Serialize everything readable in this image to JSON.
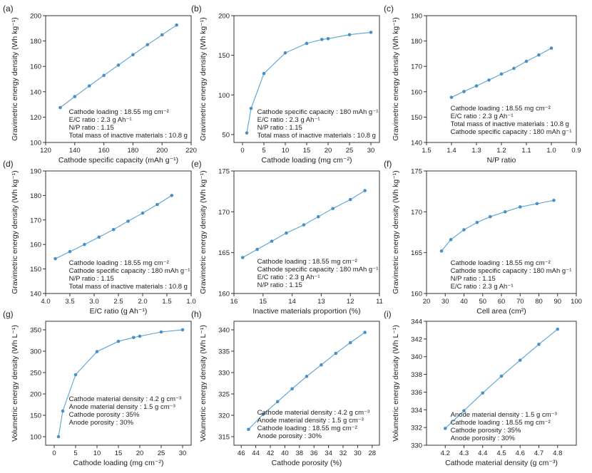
{
  "chart_data": [
    {
      "id": "a",
      "type": "line",
      "panel_label": "(a)",
      "xlabel": "Cathode specific capacity (mAh g⁻¹)",
      "ylabel": "Gravimetric energy density (Wh kg⁻¹)",
      "xlim": [
        120,
        220
      ],
      "ylim": [
        100,
        200
      ],
      "x_reversed": false,
      "xticks": [
        120,
        140,
        160,
        180,
        200,
        220
      ],
      "yticks": [
        100,
        120,
        140,
        160,
        180,
        200
      ],
      "x": [
        130,
        140,
        150,
        160,
        170,
        180,
        190,
        200,
        210
      ],
      "y": [
        127.5,
        136.2,
        144.6,
        152.9,
        161.0,
        169.2,
        177.1,
        184.9,
        192.6
      ],
      "annotation_position": "bottom-right",
      "annotations": [
        "Cathode loading : 18.55 mg cm⁻²",
        "E/C ratio : 2.3 g Ah⁻¹",
        "N/P ratio : 1.15",
        "Total mass of inactive materials : 10.8 g"
      ]
    },
    {
      "id": "b",
      "type": "line",
      "panel_label": "(b)",
      "xlabel": "Cathode loading (mg cm⁻²)",
      "ylabel": "Gravimetric energy density (Wh kg⁻¹)",
      "xlim": [
        -2,
        32
      ],
      "ylim": [
        40,
        200
      ],
      "x_reversed": false,
      "xticks": [
        0,
        5,
        10,
        15,
        20,
        25,
        30
      ],
      "yticks": [
        50,
        100,
        150,
        200
      ],
      "x": [
        1,
        2,
        5,
        10,
        15,
        18.55,
        20,
        25,
        30
      ],
      "y": [
        52,
        83,
        127,
        153,
        165,
        170,
        171,
        176,
        179
      ],
      "annotation_position": "bottom-right",
      "annotations": [
        "Cathode specific capacity : 180 mAh g⁻¹",
        "E/C ratio : 2.3 g Ah⁻¹",
        "N/P ratio : 1.15",
        "Total mass of inactive materials : 10.8 g"
      ]
    },
    {
      "id": "c",
      "type": "line",
      "panel_label": "(c)",
      "xlabel": "N/P ratio",
      "ylabel": "Gravimetric energy density (Wh kg⁻¹)",
      "xlim": [
        1.5,
        0.9
      ],
      "ylim": [
        140,
        190
      ],
      "x_reversed": true,
      "xticks": [
        1.5,
        1.4,
        1.3,
        1.2,
        1.1,
        1.0,
        0.9
      ],
      "yticks": [
        140,
        150,
        160,
        170,
        180,
        190
      ],
      "x": [
        1.4,
        1.35,
        1.3,
        1.25,
        1.2,
        1.15,
        1.1,
        1.05,
        1.0
      ],
      "y": [
        157.8,
        160.1,
        162.3,
        164.6,
        167.0,
        169.2,
        172.0,
        174.5,
        177.2
      ],
      "annotation_position": "bottom-right",
      "annotations": [
        "Cathode loading : 18.55 mg cm⁻²",
        "E/C ratio : 2.3 g Ah⁻¹",
        "Total mass of inactive materials : 10.8 g",
        "Cathode specific capacity : 180 mAh g⁻¹"
      ]
    },
    {
      "id": "d",
      "type": "line",
      "panel_label": "(d)",
      "xlabel": "E/C ratio (g Ah⁻¹)",
      "ylabel": "Gravimetric energy density (Wh kg⁻¹)",
      "xlim": [
        4.0,
        1.0
      ],
      "ylim": [
        140,
        190
      ],
      "x_reversed": true,
      "xticks": [
        4.0,
        3.5,
        3.0,
        2.5,
        2.0,
        1.5,
        1.0
      ],
      "yticks": [
        140,
        150,
        160,
        170,
        180,
        190
      ],
      "x": [
        3.8,
        3.5,
        3.2,
        2.9,
        2.6,
        2.3,
        2.0,
        1.7,
        1.4
      ],
      "y": [
        154.2,
        157.1,
        160.0,
        163.0,
        166.1,
        169.5,
        172.8,
        176.3,
        180.0
      ],
      "annotation_position": "bottom-right",
      "annotations": [
        "Cathode loading : 18.55 mg cm⁻²",
        "Cathode specific capacity : 180 mAh g⁻¹",
        "N/P ratio : 1.15",
        "Total mass of inactive materials : 10.8 g"
      ]
    },
    {
      "id": "e",
      "type": "line",
      "panel_label": "(e)",
      "xlabel": "Inactive materials proportion (%)",
      "ylabel": "Gravimetric energy density (Wh kg⁻¹)",
      "xlim": [
        16,
        11
      ],
      "ylim": [
        160,
        175
      ],
      "x_reversed": true,
      "xticks": [
        16,
        15,
        14,
        13,
        12,
        11
      ],
      "yticks": [
        160,
        165,
        170,
        175
      ],
      "x": [
        15.7,
        15.2,
        14.7,
        14.2,
        13.6,
        13.1,
        12.6,
        12.0,
        11.5
      ],
      "y": [
        164.4,
        165.4,
        166.4,
        167.4,
        168.4,
        169.4,
        170.4,
        171.5,
        172.6
      ],
      "annotation_position": "bottom-right",
      "annotations": [
        "Cathode loading : 18.55 mg cm⁻²",
        "Cathode specific capacity : 180 mAh g⁻¹",
        "E/C ratio : 2.3 g Ah⁻¹",
        "N/P ratio : 1.15"
      ]
    },
    {
      "id": "f",
      "type": "line",
      "panel_label": "(f)",
      "xlabel": "Cell area (cm²)",
      "ylabel": "Gravimetric energy density (Wh kg⁻¹)",
      "xlim": [
        20,
        100
      ],
      "ylim": [
        160,
        175
      ],
      "x_reversed": false,
      "xticks": [
        20,
        30,
        40,
        50,
        60,
        70,
        80,
        90,
        100
      ],
      "yticks": [
        160,
        165,
        170,
        175
      ],
      "x": [
        28,
        33,
        40,
        47,
        54,
        62,
        70,
        79,
        88
      ],
      "y": [
        165.2,
        166.6,
        167.8,
        168.7,
        169.4,
        170.0,
        170.6,
        171.0,
        171.4
      ],
      "annotation_position": "bottom-right",
      "annotations": [
        "Cathode loading : 18.55 mg cm⁻²",
        "Cathode specific capacity : 180 mAh g⁻¹",
        "N/P ratio : 1.15",
        "E/C ratio : 2.3 g Ah⁻¹"
      ]
    },
    {
      "id": "g",
      "type": "line",
      "panel_label": "(g)",
      "xlabel": "Cathode loading (mg cm⁻²)",
      "ylabel": "Volumetric energy density (Wh L⁻¹)",
      "xlim": [
        -2,
        32
      ],
      "ylim": [
        80,
        370
      ],
      "x_reversed": false,
      "xticks": [
        0,
        5,
        10,
        15,
        20,
        25,
        30
      ],
      "yticks": [
        100,
        150,
        200,
        250,
        300,
        350
      ],
      "x": [
        1,
        2,
        5,
        10,
        15,
        18.55,
        20,
        25,
        30
      ],
      "y": [
        100,
        160,
        245,
        299,
        323,
        332,
        335,
        345,
        350
      ],
      "annotation_position": "bottom-right",
      "annotations": [
        "Cathode material density : 4.2 g cm⁻³",
        "Anode material density : 1.5 g cm⁻³",
        "Cathode porosity : 35%",
        "Anode porosity : 30%"
      ]
    },
    {
      "id": "h",
      "type": "line",
      "panel_label": "(h)",
      "xlabel": "Cathode porosity (%)",
      "ylabel": "Volumetric energy density (Wh L⁻¹)",
      "xlim": [
        47,
        27
      ],
      "ylim": [
        313,
        342
      ],
      "x_reversed": true,
      "xticks": [
        46,
        44,
        42,
        40,
        38,
        36,
        34,
        32,
        30,
        28
      ],
      "yticks": [
        315,
        320,
        325,
        330,
        335,
        340
      ],
      "x": [
        45,
        43,
        41,
        39,
        37,
        35,
        33,
        31,
        29
      ],
      "y": [
        316.7,
        320.2,
        323.2,
        326.2,
        329.1,
        331.8,
        334.5,
        337.0,
        339.4
      ],
      "annotation_position": "bottom-right",
      "annotations": [
        "Cathode material density : 4.2 g cm⁻³",
        "Anode material density : 1.5 g cm⁻³",
        "Cathode loading : 18.55 mg cm⁻²",
        "Anode porosity : 30%"
      ]
    },
    {
      "id": "i",
      "type": "line",
      "panel_label": "(i)",
      "xlabel": "Cathode material density (g cm⁻³)",
      "ylabel": "Volumetric energy density (Wh L⁻¹)",
      "xlim": [
        4.1,
        4.9
      ],
      "ylim": [
        330,
        344
      ],
      "x_reversed": false,
      "xticks": [
        4.2,
        4.3,
        4.4,
        4.5,
        4.6,
        4.7,
        4.8
      ],
      "yticks": [
        330,
        332,
        334,
        336,
        338,
        340,
        342,
        344
      ],
      "x": [
        4.2,
        4.3,
        4.4,
        4.5,
        4.6,
        4.7,
        4.8
      ],
      "y": [
        331.9,
        333.9,
        335.9,
        337.8,
        339.6,
        341.4,
        343.1
      ],
      "annotation_position": "bottom-right",
      "annotations": [
        "Anode material density : 1.5 g cm⁻³",
        "Cathode loading : 18.55 mg cm⁻²",
        "Cathode porosity : 35%",
        "Anode porosity : 30%"
      ]
    }
  ]
}
